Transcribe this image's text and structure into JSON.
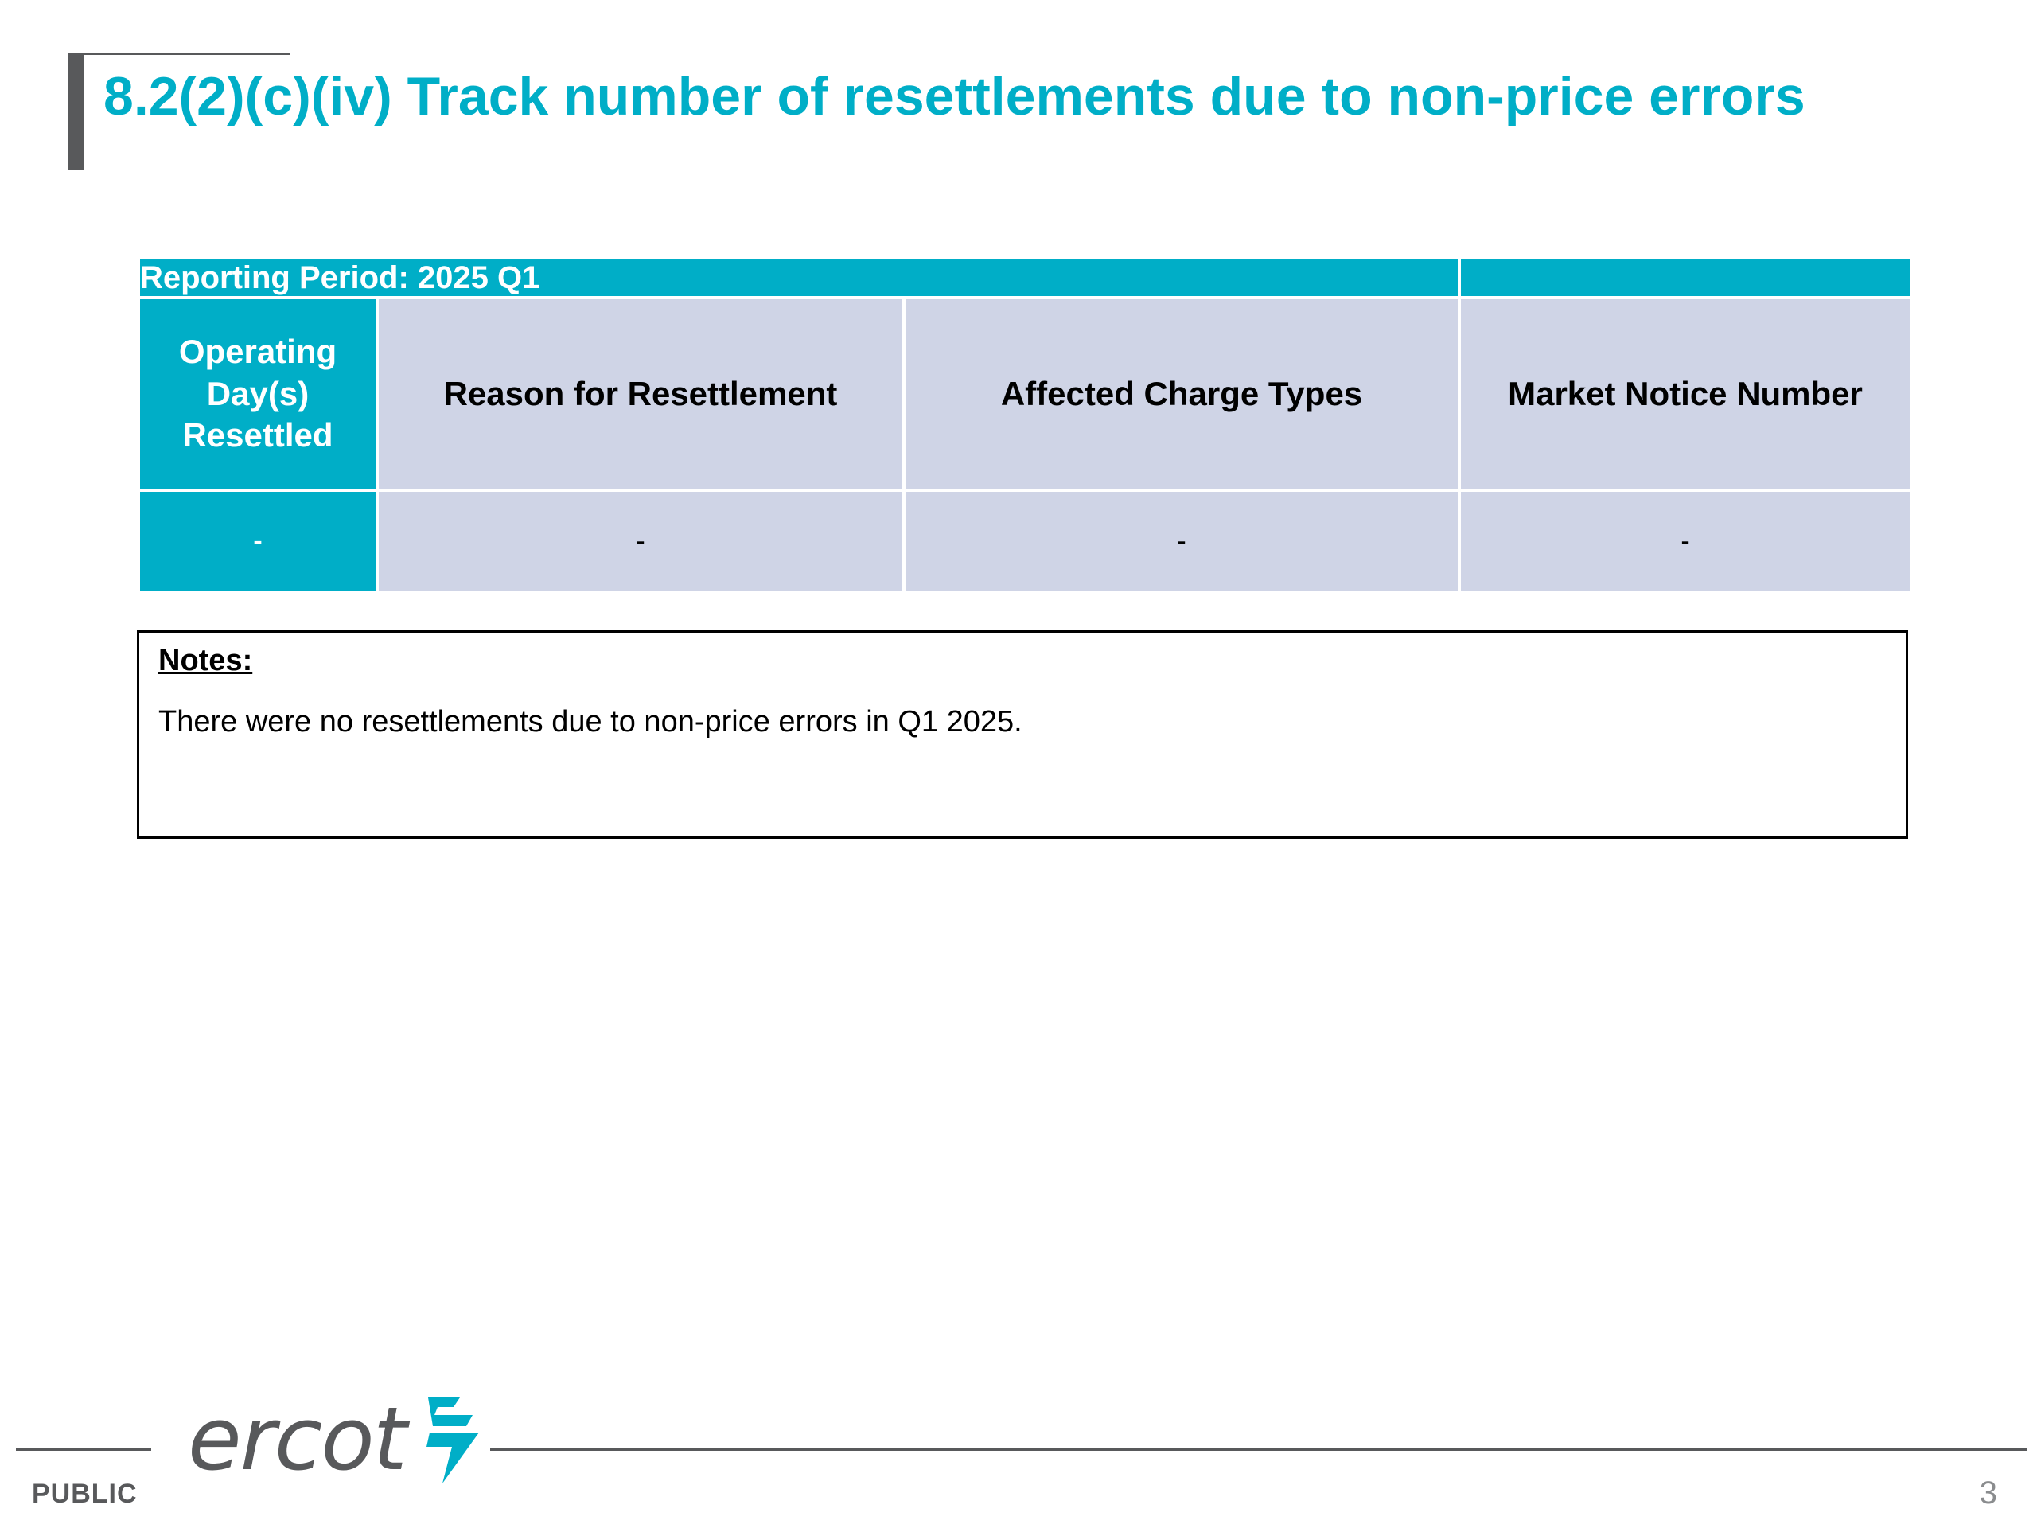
{
  "slide": {
    "title": "8.2(2)(c)(iv) Track number of resettlements due to non-price errors"
  },
  "table": {
    "reporting_period": "Reporting Period: 2025 Q1",
    "headers": [
      "Operating Day(s) Resettled",
      "Reason for Resettlement",
      "Affected Charge Types",
      "Market Notice Number"
    ],
    "rows": [
      [
        "-",
        "-",
        "-",
        "-"
      ]
    ]
  },
  "notes": {
    "heading": "Notes:",
    "text": "There were no resettlements due to non-price errors in Q1 2025."
  },
  "footer": {
    "logo_text": "ercot",
    "classification": "PUBLIC",
    "page_number": "3"
  },
  "colors": {
    "accent_teal": "#00aec7",
    "cell_lavender": "#cfd4e6",
    "footer_gray": "#58595b"
  }
}
